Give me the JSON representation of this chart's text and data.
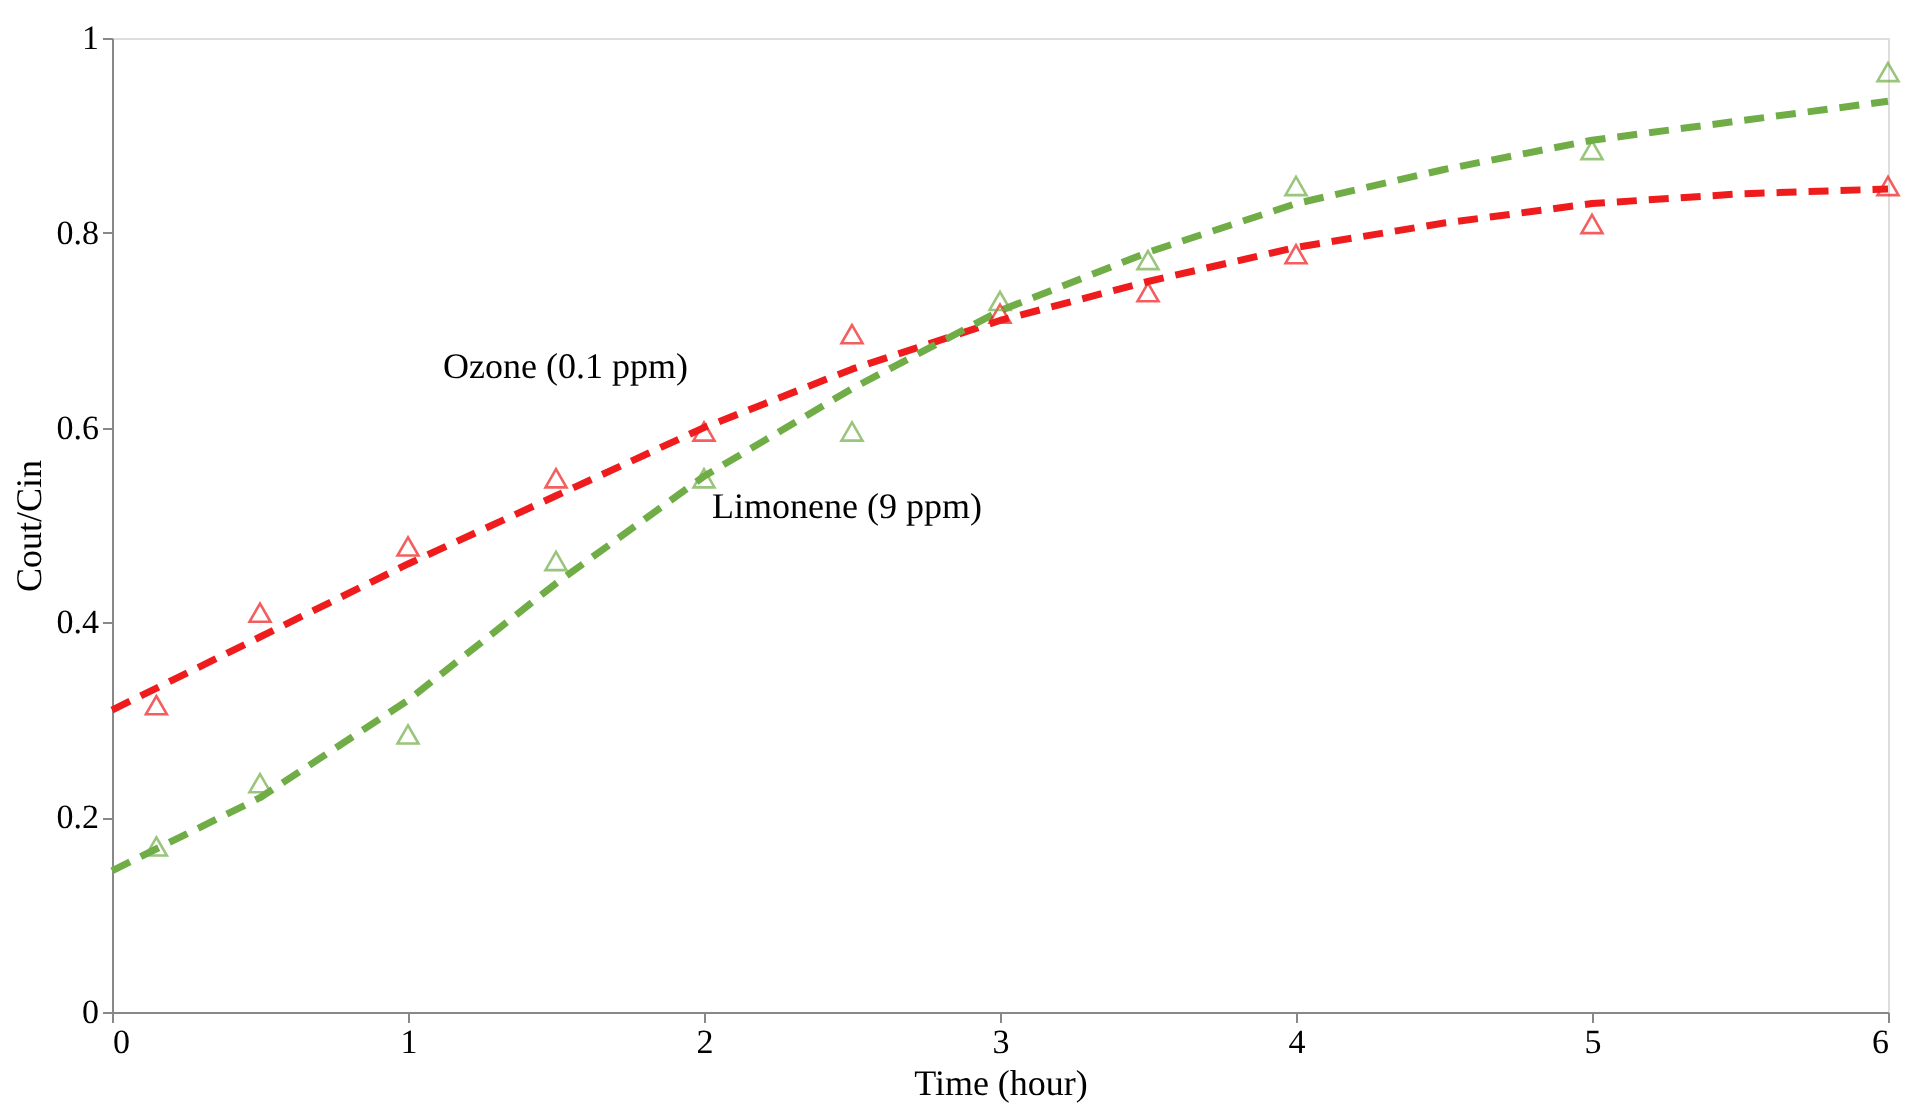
{
  "chart_data": {
    "type": "scatter",
    "xlabel": "Time (hour)",
    "ylabel": "Cout/Cin",
    "xlim": [
      0,
      6
    ],
    "ylim": [
      0,
      1
    ],
    "xticks": [
      0,
      1,
      2,
      3,
      4,
      5,
      6
    ],
    "yticks": [
      0,
      0.2,
      0.4,
      0.6,
      0.8,
      1
    ],
    "grid": false,
    "marker": "triangle",
    "series": [
      {
        "type": "line",
        "name": "Ozone (0.1 ppm)",
        "marker": "none",
        "line_style": "dashed",
        "color": "#ee1c1c",
        "x": [
          0,
          0.5,
          1,
          1.5,
          2,
          2.5,
          3,
          3.5,
          4,
          4.5,
          5,
          5.5,
          6
        ],
        "values": [
          0.31,
          0.385,
          0.46,
          0.53,
          0.6,
          0.66,
          0.71,
          0.75,
          0.785,
          0.81,
          0.83,
          0.84,
          0.845
        ]
      },
      {
        "type": "line",
        "name": "Limonene (9 ppm)",
        "marker": "none",
        "line_style": "dashed",
        "color": "#70ad47",
        "x": [
          0,
          0.5,
          1,
          1.5,
          2,
          2.5,
          3,
          3.5,
          4,
          4.5,
          5,
          5.5,
          6
        ],
        "values": [
          0.145,
          0.22,
          0.32,
          0.44,
          0.55,
          0.64,
          0.72,
          0.78,
          0.83,
          0.865,
          0.895,
          0.915,
          0.935
        ]
      },
      {
        "color": "#ee1c1c",
        "x": [
          0.15,
          0.5,
          1,
          1.5,
          2,
          2.5,
          3,
          3.5,
          4,
          5,
          6
        ],
        "values": [
          0.315,
          0.41,
          0.478,
          0.548,
          0.596,
          0.696,
          0.717,
          0.739,
          0.778,
          0.809,
          0.848
        ]
      },
      {
        "color": "#70ad47",
        "x": [
          0.15,
          0.5,
          1,
          1.5,
          2,
          2.5,
          3,
          3.5,
          4,
          5,
          6
        ],
        "values": [
          0.17,
          0.235,
          0.285,
          0.463,
          0.548,
          0.596,
          0.73,
          0.772,
          0.848,
          0.885,
          0.965
        ]
      }
    ]
  }
}
